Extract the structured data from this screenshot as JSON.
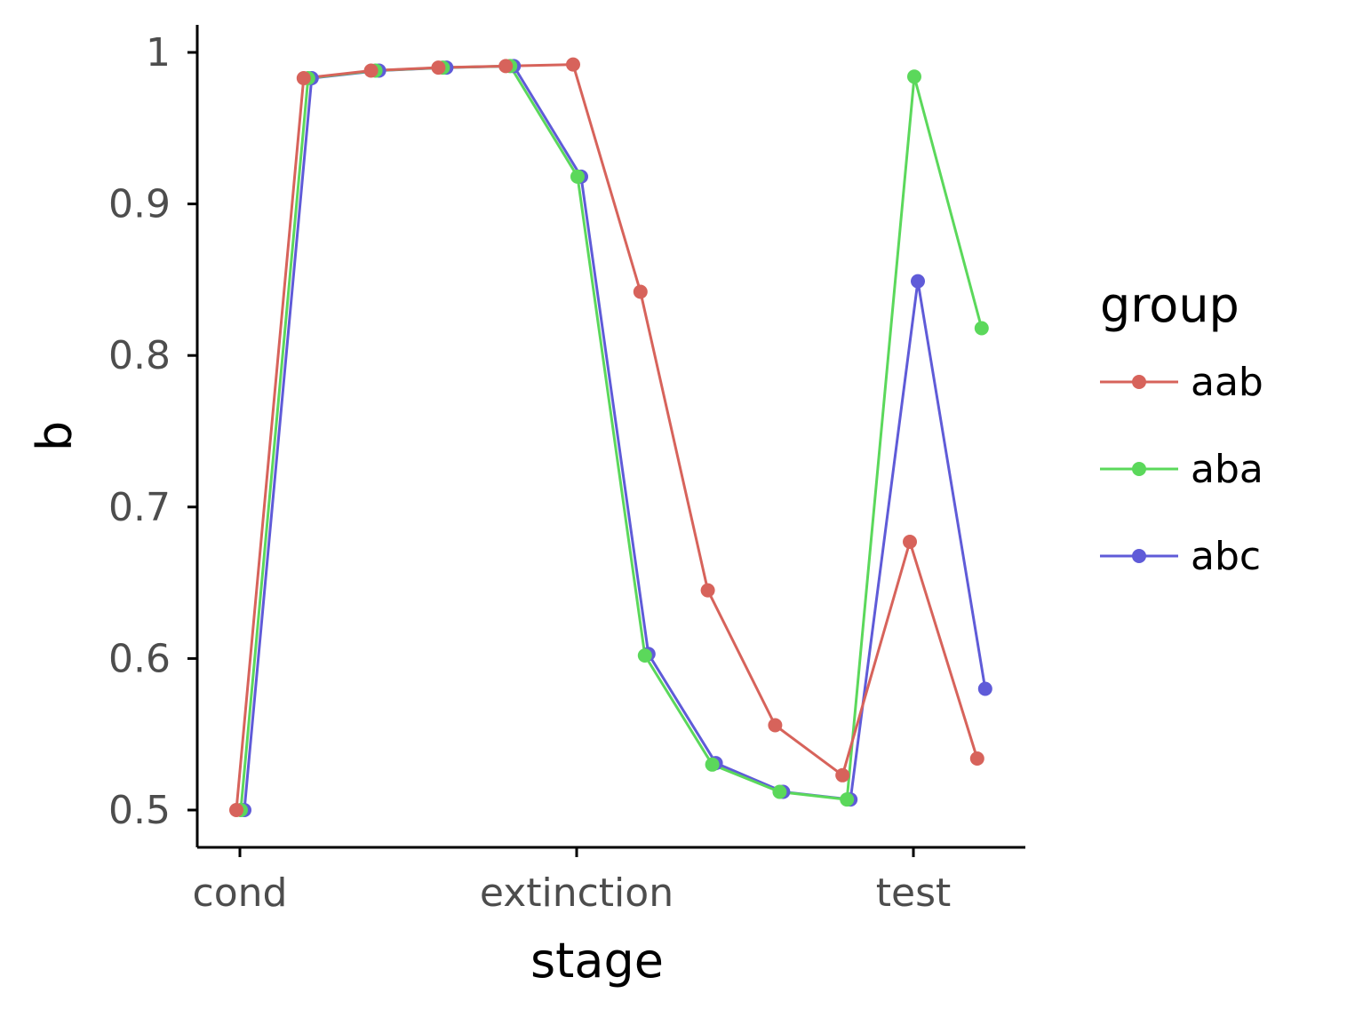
{
  "chart_data": {
    "type": "line",
    "xlabel": "stage",
    "ylabel": "b",
    "x_tick_labels": [
      "cond",
      "extinction",
      "test"
    ],
    "y_ticks": [
      0.5,
      0.6,
      0.7,
      0.8,
      0.9,
      1
    ],
    "y_tick_labels": [
      "0.5",
      "0.6",
      "0.7",
      "0.8",
      "0.9",
      "1"
    ],
    "ylim": [
      0.476,
      1.017
    ],
    "legend": {
      "title": "group",
      "position": "right"
    },
    "grid": false,
    "series": [
      {
        "name": "aab",
        "color": "#D7635B",
        "x": [
          0,
          0.2,
          0.4,
          0.6,
          0.8,
          1.0,
          1.2,
          1.4,
          1.6,
          1.8,
          2.0,
          2.2
        ],
        "y": [
          0.5,
          0.983,
          0.988,
          0.99,
          0.991,
          0.992,
          0.842,
          0.645,
          0.556,
          0.523,
          0.677,
          0.534
        ]
      },
      {
        "name": "aba",
        "color": "#5BD85B",
        "x": [
          0,
          0.2,
          0.4,
          0.6,
          0.8,
          1.0,
          1.2,
          1.4,
          1.6,
          1.8,
          2.0,
          2.2
        ],
        "y": [
          0.5,
          0.983,
          0.988,
          0.99,
          0.991,
          0.918,
          0.602,
          0.53,
          0.512,
          0.507,
          0.984,
          0.818
        ]
      },
      {
        "name": "abc",
        "color": "#5F5BD8",
        "x": [
          0,
          0.2,
          0.4,
          0.6,
          0.8,
          1.0,
          1.2,
          1.4,
          1.6,
          1.8,
          2.0,
          2.2
        ],
        "y": [
          0.5,
          0.983,
          0.988,
          0.99,
          0.991,
          0.918,
          0.603,
          0.531,
          0.512,
          0.507,
          0.849,
          0.58
        ]
      }
    ]
  }
}
